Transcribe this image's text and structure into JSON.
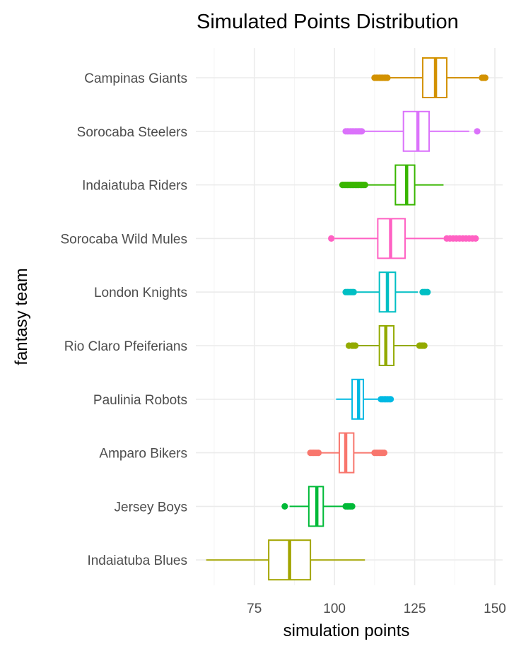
{
  "chart_data": {
    "type": "boxplot",
    "title": "Simulated Points Distribution",
    "xlabel": "simulation points",
    "ylabel": "fantasy team",
    "xlim": [
      57.5,
      151
    ],
    "x_ticks": [
      75,
      100,
      125,
      150
    ],
    "grid": true,
    "legend": "none",
    "orientation": "horizontal",
    "series": [
      {
        "name": "Campinas Giants",
        "color": "#D39200",
        "whisker_low": 117,
        "q1": 127.5,
        "median": 131.5,
        "q3": 135,
        "whisker_high": 145,
        "outliers": [
          112.5,
          113,
          113.5,
          114,
          114.5,
          115,
          115.5,
          116,
          116.5,
          146,
          146.5,
          147
        ]
      },
      {
        "name": "Sorocaba Steelers",
        "color": "#DB72FB",
        "whisker_low": 109,
        "q1": 121.5,
        "median": 126,
        "q3": 129.5,
        "whisker_high": 142,
        "outliers": [
          103.5,
          104,
          104.5,
          105,
          105.5,
          106,
          106.5,
          107,
          107.5,
          108,
          108.5,
          144.5
        ]
      },
      {
        "name": "Indaiatuba Riders",
        "color": "#39B600",
        "whisker_low": 110,
        "q1": 119,
        "median": 122.5,
        "q3": 125,
        "whisker_high": 134,
        "outliers": [
          102.5,
          103,
          103.5,
          104,
          104.5,
          105,
          105.5,
          106,
          106.5,
          107,
          107.5,
          108,
          108.5,
          109,
          109.5
        ]
      },
      {
        "name": "Sorocaba Wild Mules",
        "color": "#FF61C3",
        "whisker_low": 100,
        "q1": 113.5,
        "median": 117.5,
        "q3": 122,
        "whisker_high": 134,
        "outliers": [
          99,
          135,
          136,
          137,
          138,
          139,
          140,
          141,
          142,
          143,
          144
        ]
      },
      {
        "name": "London Knights",
        "color": "#00BFC4",
        "whisker_low": 107,
        "q1": 114,
        "median": 116.5,
        "q3": 119,
        "whisker_high": 126,
        "outliers": [
          103.5,
          104,
          104.5,
          105,
          105.5,
          106,
          127.5,
          128,
          128.5,
          129
        ]
      },
      {
        "name": "Rio Claro Pfeiferians",
        "color": "#93AA00",
        "whisker_low": 107,
        "q1": 114,
        "median": 116,
        "q3": 118.5,
        "whisker_high": 125.5,
        "outliers": [
          104.5,
          105.5,
          106,
          106.5,
          126.5,
          127,
          127.5,
          128
        ]
      },
      {
        "name": "Paulinia Robots",
        "color": "#00B9E3",
        "whisker_low": 100.5,
        "q1": 105.5,
        "median": 107.5,
        "q3": 109,
        "whisker_high": 113.5,
        "outliers": [
          114.5,
          115,
          115.5,
          116,
          116.5,
          117,
          117.5
        ]
      },
      {
        "name": "Amparo Bikers",
        "color": "#F8766D",
        "whisker_low": 96,
        "q1": 101.5,
        "median": 103.5,
        "q3": 106,
        "whisker_high": 112,
        "outliers": [
          92.5,
          93,
          93.5,
          94,
          94.5,
          95,
          112.5,
          113,
          113.5,
          114,
          114.5,
          115,
          115.5
        ]
      },
      {
        "name": "Jersey Boys",
        "color": "#00BA38",
        "whisker_low": 86,
        "q1": 92,
        "median": 94.5,
        "q3": 96.5,
        "whisker_high": 103,
        "outliers": [
          84.5,
          103.5,
          104,
          104.5,
          105,
          105.5
        ]
      },
      {
        "name": "Indaiatuba Blues",
        "color": "#A3A500",
        "whisker_low": 60,
        "q1": 79.5,
        "median": 86,
        "q3": 92.5,
        "whisker_high": 109.5,
        "outliers": []
      }
    ]
  }
}
